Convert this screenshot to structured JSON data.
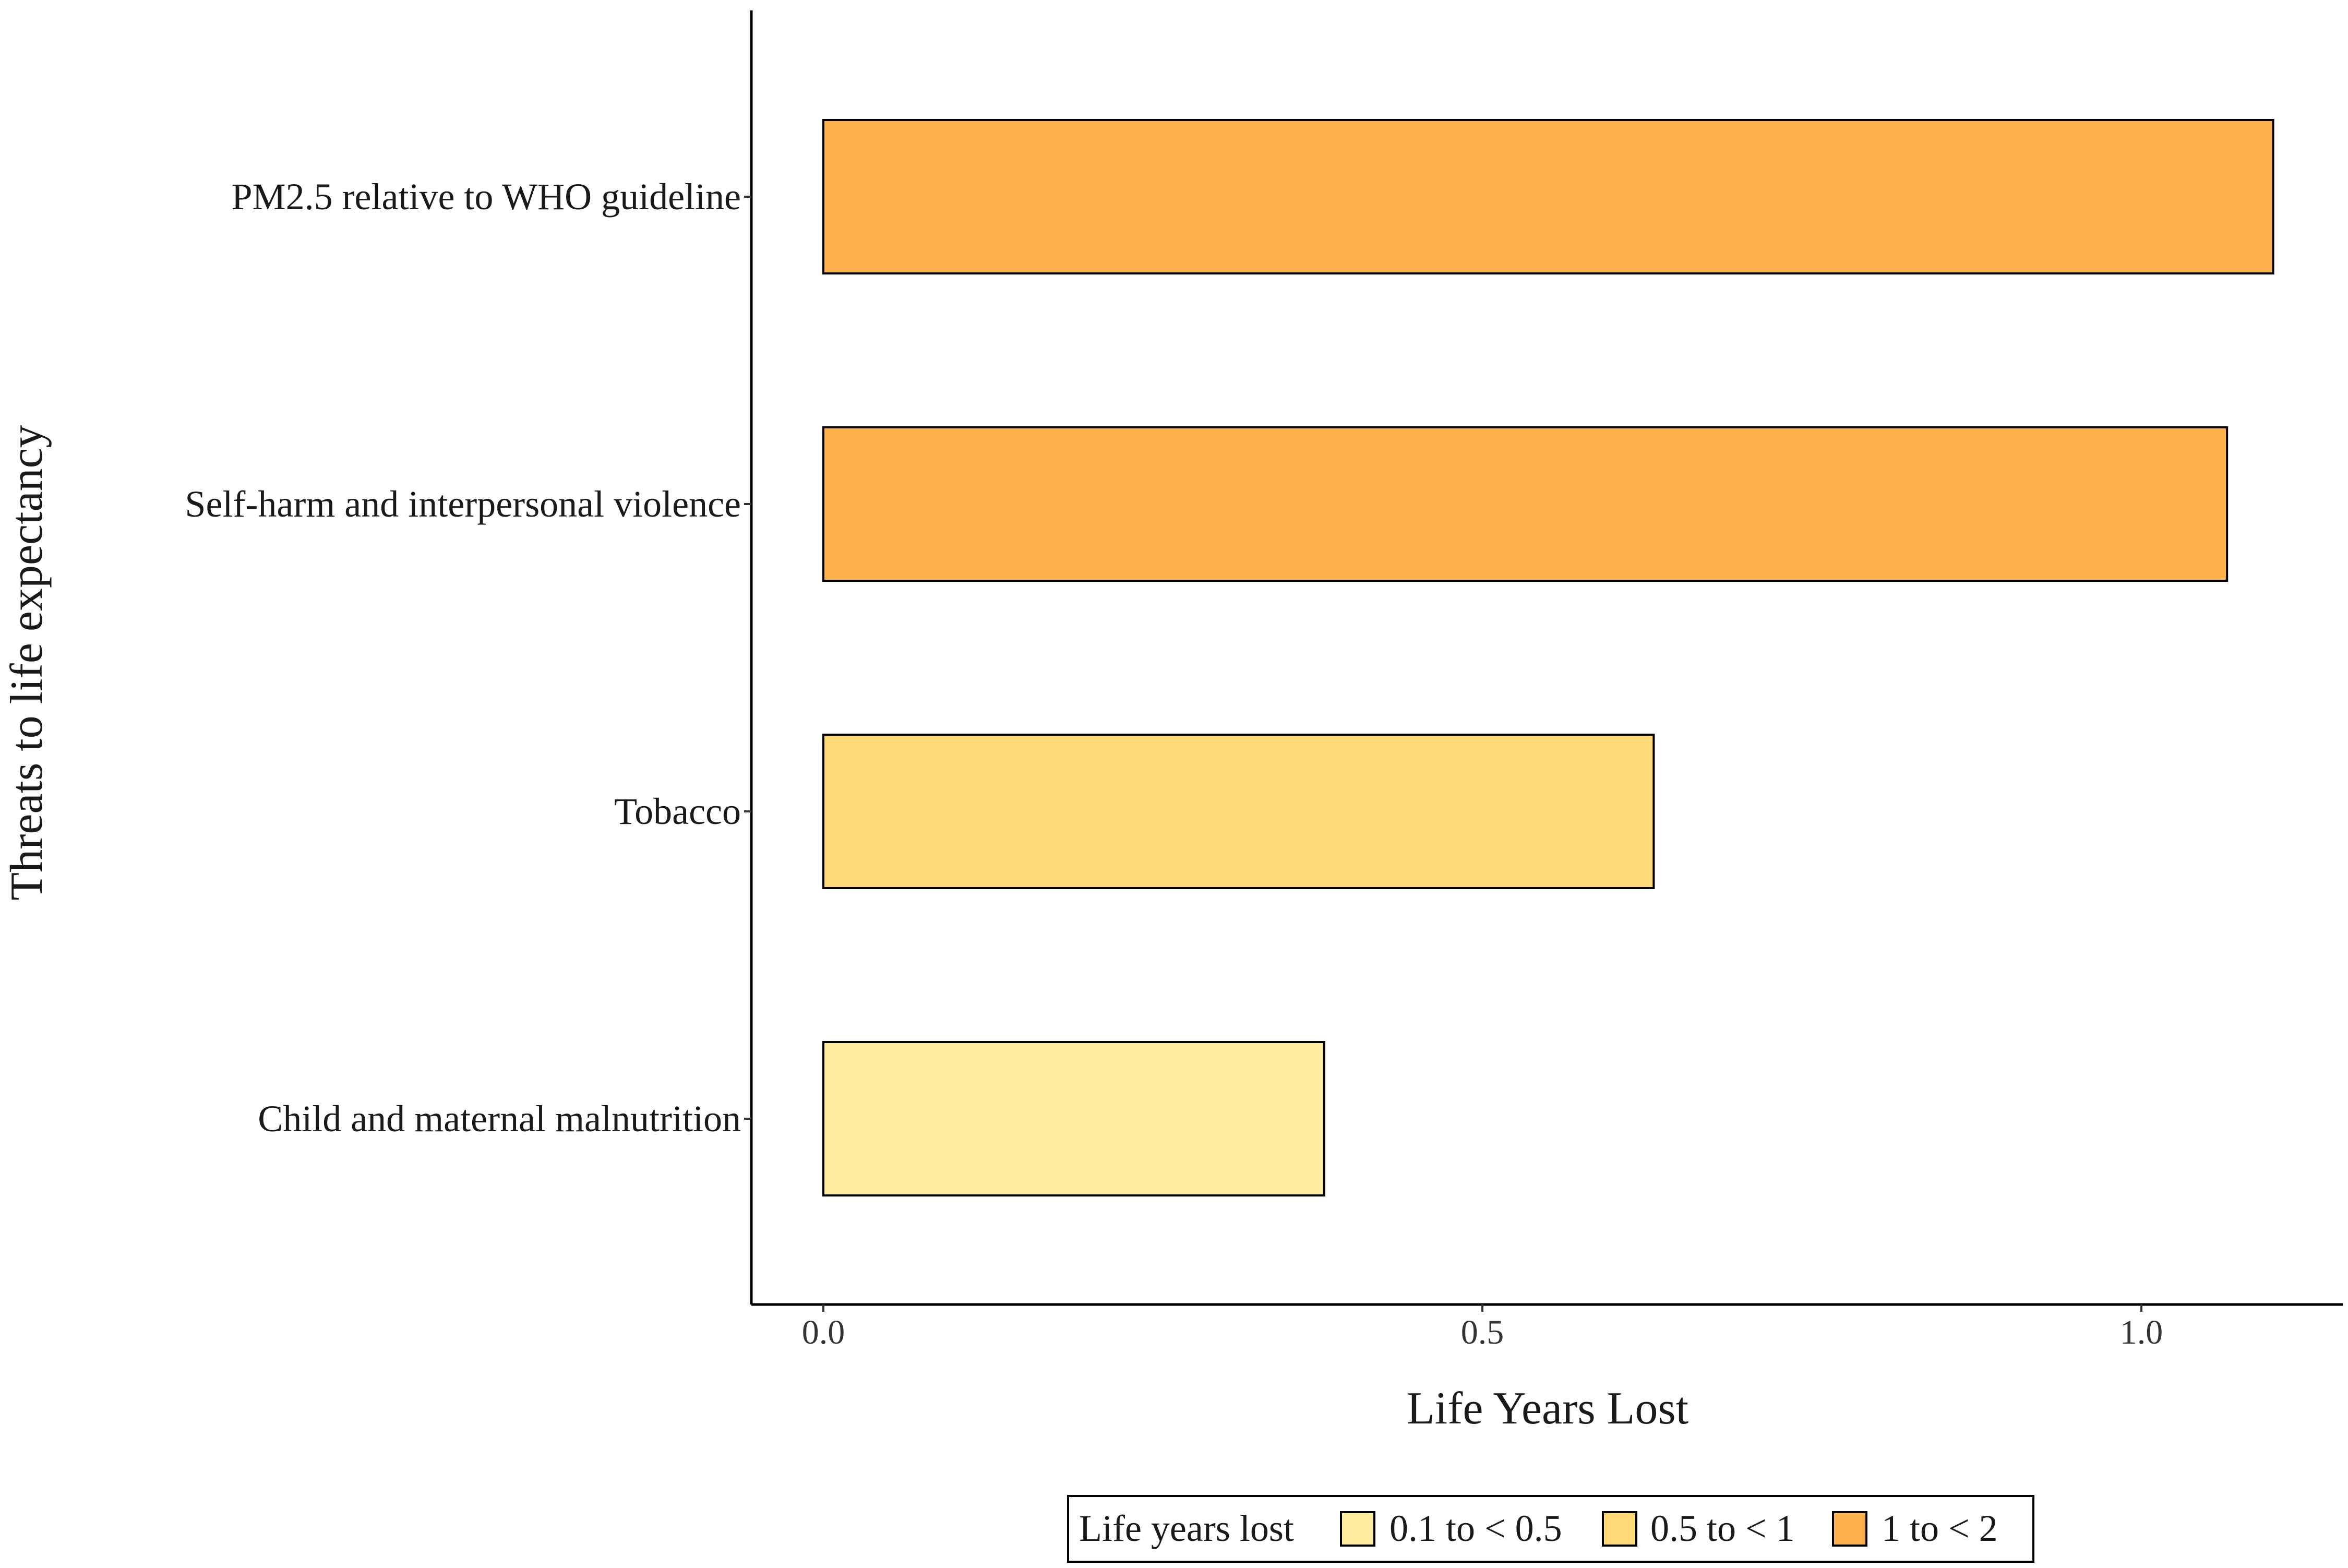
{
  "chart_data": {
    "type": "bar",
    "orientation": "horizontal",
    "title": "",
    "xlabel": "Life Years Lost",
    "ylabel": "Threats to life expectancy",
    "categories": [
      "PM2.5 relative to WHO guideline",
      "Self-harm and interpersonal violence",
      "Tobacco",
      "Child and maternal malnutrition"
    ],
    "values": [
      1.1,
      1.065,
      0.63,
      0.38
    ],
    "value_groups": [
      "1 to < 2",
      "1 to < 2",
      "0.5 to < 1",
      "0.1 to < 0.5"
    ],
    "xlim": [
      -0.055,
      1.155
    ],
    "xticks": [
      0.0,
      0.5,
      1.0
    ],
    "xtick_labels": [
      "0.0",
      "0.5",
      "1.0"
    ],
    "grid": false,
    "legend": {
      "position": "bottom",
      "title": "Life years lost",
      "entries": [
        {
          "label": "0.1 to < 0.5",
          "color": "#FEEDA0"
        },
        {
          "label": "0.5 to < 1",
          "color": "#FED976"
        },
        {
          "label": "1 to < 2",
          "color": "#FEB24C"
        }
      ]
    }
  }
}
